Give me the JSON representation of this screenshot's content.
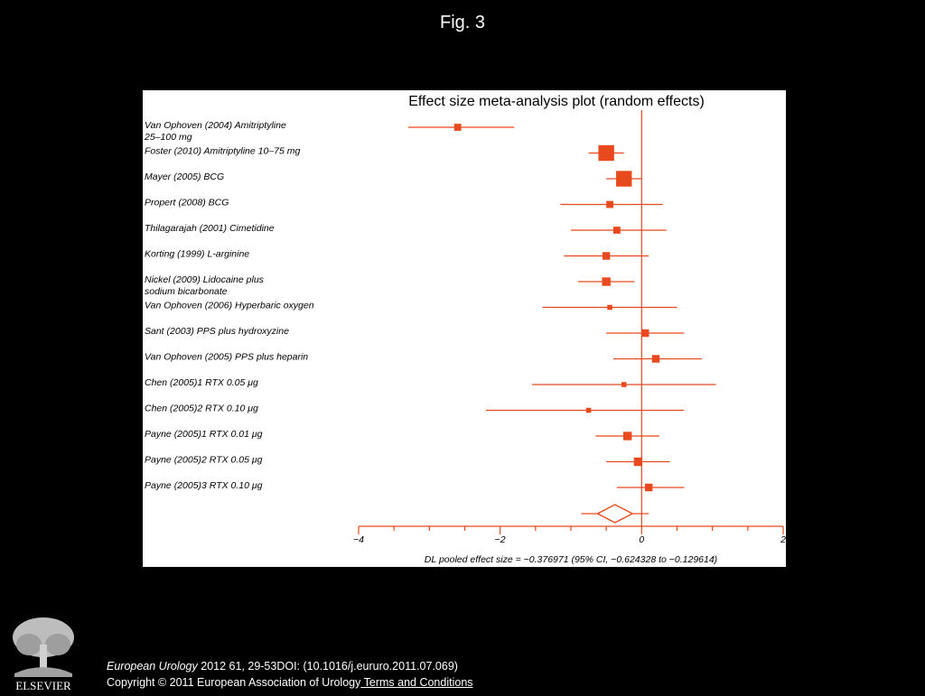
{
  "figure_label": "Fig. 3",
  "chart_data": {
    "type": "forest",
    "title": "Effect size meta-analysis plot (random effects)",
    "studies": [
      {
        "label": "Van Ophoven (2004) Amitriptyline 25–100 mg",
        "estimate": -2.6,
        "ci": [
          -3.3,
          -1.8
        ],
        "weight": 1.5
      },
      {
        "label": "Foster (2010) Amitriptyline 10–75 mg",
        "estimate": -0.5,
        "ci": [
          -0.75,
          -0.25
        ],
        "weight": 4.5
      },
      {
        "label": "Mayer (2005) BCG",
        "estimate": -0.25,
        "ci": [
          -0.5,
          0.0
        ],
        "weight": 4.5
      },
      {
        "label": "Propert (2008) BCG",
        "estimate": -0.45,
        "ci": [
          -1.15,
          0.3
        ],
        "weight": 1.5
      },
      {
        "label": "Thilagarajah (2001) Cimetidine",
        "estimate": -0.35,
        "ci": [
          -1.0,
          0.35
        ],
        "weight": 1.5
      },
      {
        "label": "Korting (1999) L-arginine",
        "estimate": -0.5,
        "ci": [
          -1.1,
          0.1
        ],
        "weight": 1.7
      },
      {
        "label": "Nickel (2009) Lidocaine plus sodium bicarbonate",
        "estimate": -0.5,
        "ci": [
          -0.9,
          -0.1
        ],
        "weight": 2.0
      },
      {
        "label": "Van Ophoven (2006) Hyperbaric oxygen",
        "estimate": -0.45,
        "ci": [
          -1.4,
          0.5
        ],
        "weight": 0.8
      },
      {
        "label": "Sant (2003) PPS plus hydroxyzine",
        "estimate": 0.05,
        "ci": [
          -0.5,
          0.6
        ],
        "weight": 1.7
      },
      {
        "label": "Van Ophoven  (2005) PPS plus heparin",
        "estimate": 0.2,
        "ci": [
          -0.4,
          0.85
        ],
        "weight": 1.7
      },
      {
        "label": "Chen (2005)1 RTX 0.05 μg",
        "estimate": -0.25,
        "ci": [
          -1.55,
          1.05
        ],
        "weight": 0.8
      },
      {
        "label": "Chen (2005)2 RTX 0.10 μg",
        "estimate": -0.75,
        "ci": [
          -2.2,
          0.6
        ],
        "weight": 0.8
      },
      {
        "label": "Payne (2005)1 RTX 0.01 μg",
        "estimate": -0.2,
        "ci": [
          -0.65,
          0.25
        ],
        "weight": 2.0
      },
      {
        "label": "Payne (2005)2 RTX 0.05 μg",
        "estimate": -0.05,
        "ci": [
          -0.5,
          0.4
        ],
        "weight": 2.0
      },
      {
        "label": "Payne (2005)3 RTX 0.10 μg",
        "estimate": 0.1,
        "ci": [
          -0.35,
          0.6
        ],
        "weight": 1.7
      }
    ],
    "pooled": {
      "estimate": -0.376971,
      "ci": [
        -0.624328,
        -0.129614
      ]
    },
    "x_ticks": [
      -4,
      -2,
      0,
      2
    ],
    "xlim": [
      -4,
      2
    ],
    "xlabel": "DL pooled effect size = −0.376971 (95% CI, −0.624328 to −0.129614)",
    "colors": {
      "marks": "#e8491d",
      "panel_bg": "#ffffff",
      "page_bg": "#000000"
    }
  },
  "logo": {
    "name": "ELSEVIER",
    "icon": "elsevier-tree-icon"
  },
  "footer": {
    "journal": "European Urology",
    "citation": " 2012 61, 29-53DOI: (10.1016/j.eururo.2011.07.069)",
    "copyright": "Copyright © 2011 European Association of Urology",
    "terms_link": " Terms and Conditions"
  }
}
